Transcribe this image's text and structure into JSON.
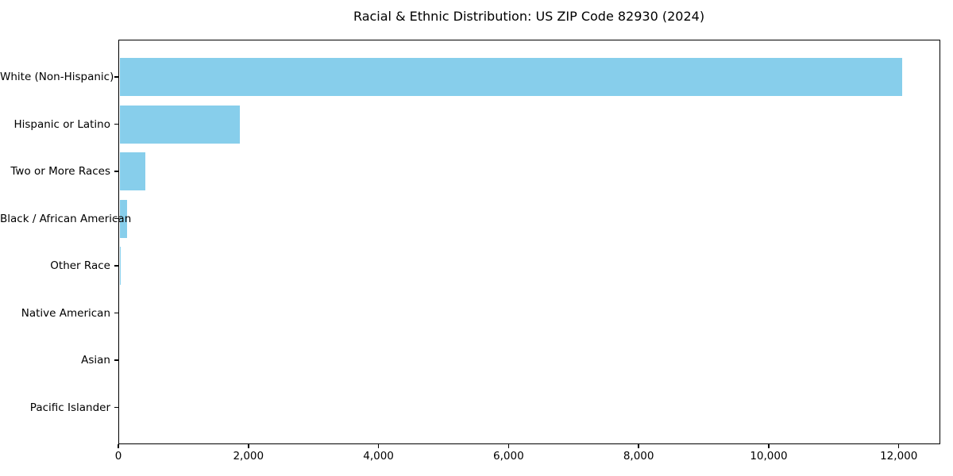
{
  "title": "Racial & Ethnic Distribution: US ZIP Code 82930 (2024)",
  "chart_data": {
    "type": "bar",
    "orientation": "horizontal",
    "title": "Racial & Ethnic Distribution: US ZIP Code 82930 (2024)",
    "categories": [
      "White (Non-Hispanic)",
      "Hispanic or Latino",
      "Two or More Races",
      "Black / African American",
      "Other Race",
      "Native American",
      "Asian",
      "Pacific Islander"
    ],
    "values": [
      12050,
      1870,
      410,
      135,
      25,
      18,
      8,
      3
    ],
    "xlabel": "",
    "ylabel": "",
    "xlim": [
      0,
      12626
    ],
    "xticks": [
      0,
      2000,
      4000,
      6000,
      8000,
      10000,
      12000
    ],
    "xtick_labels": [
      "0",
      "2,000",
      "4,000",
      "6,000",
      "8,000",
      "10,000",
      "12,000"
    ],
    "bar_color": "#87CEEB",
    "spine_color": "#000000",
    "text_color": "#000000",
    "grid": false,
    "legend": null
  }
}
